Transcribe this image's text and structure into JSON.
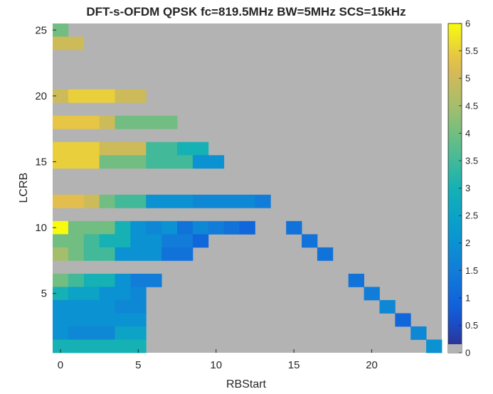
{
  "chart_data": {
    "type": "heatmap",
    "title": "DFT-s-OFDM QPSK fc=819.5MHz BW=5MHz SCS=15kHz",
    "xlabel": "RBStart",
    "ylabel": "LCRB",
    "x_range": [
      0,
      24
    ],
    "y_range": [
      1,
      25
    ],
    "xticks": [
      0,
      5,
      10,
      15,
      20
    ],
    "yticks": [
      5,
      10,
      15,
      20,
      25
    ],
    "colorbar": {
      "range": [
        0,
        6
      ],
      "ticks": [
        "0",
        "0.5",
        "1",
        "1.5",
        "2",
        "2.5",
        "3",
        "3.5",
        "4",
        "4.5",
        "5",
        "5.5",
        "6"
      ],
      "colormap": "parula"
    },
    "background_color": "#b3b3b3",
    "no_data_value": "gray",
    "rows": [
      {
        "lcrb": 25,
        "values": [
          4.0
        ]
      },
      {
        "lcrb": 24,
        "values": [
          5.0,
          5.0
        ]
      },
      {
        "lcrb": 20,
        "values": [
          5.0,
          5.5,
          5.5,
          5.5,
          5.0,
          5.0
        ]
      },
      {
        "lcrb": 18,
        "values": [
          5.4,
          5.4,
          5.4,
          5.0,
          4.0,
          4.0,
          4.0,
          4.0
        ]
      },
      {
        "lcrb": 16,
        "values": [
          5.5,
          5.5,
          5.5,
          5.0,
          5.0,
          5.0,
          3.5,
          3.5,
          3.0,
          3.0
        ]
      },
      {
        "lcrb": 15,
        "values": [
          5.5,
          5.5,
          5.5,
          4.0,
          4.0,
          4.0,
          3.5,
          3.5,
          3.5,
          2.0,
          2.0
        ]
      },
      {
        "lcrb": 12,
        "values": [
          5.3,
          5.3,
          5.0,
          4.0,
          3.5,
          3.5,
          2.0,
          2.0,
          2.0,
          1.75,
          1.75,
          1.75,
          1.75,
          1.5
        ]
      },
      {
        "lcrb": 10,
        "values": [
          6.0,
          4.0,
          4.0,
          4.0,
          3.0,
          2.0,
          1.75,
          2.0,
          1.25,
          1.75,
          1.5,
          1.25,
          1.0,
          null,
          null,
          1.25
        ]
      },
      {
        "lcrb": 9,
        "values": [
          4.0,
          4.0,
          3.5,
          3.0,
          3.0,
          2.0,
          2.0,
          1.5,
          1.5,
          1.0,
          null,
          null,
          null,
          null,
          null,
          null,
          1.25
        ]
      },
      {
        "lcrb": 8,
        "values": [
          4.5,
          4.0,
          3.5,
          3.5,
          2.0,
          2.0,
          2.0,
          1.25,
          1.25,
          null,
          null,
          null,
          null,
          null,
          null,
          null,
          null,
          1.25
        ]
      },
      {
        "lcrb": 6,
        "values": [
          4.0,
          3.5,
          3.0,
          3.0,
          2.0,
          1.5,
          1.5,
          null,
          null,
          null,
          null,
          null,
          null,
          null,
          null,
          null,
          null,
          null,
          null,
          1.25
        ]
      },
      {
        "lcrb": 5,
        "values": [
          3.0,
          2.5,
          2.5,
          2.0,
          2.0,
          1.75,
          null,
          null,
          null,
          null,
          null,
          null,
          null,
          null,
          null,
          null,
          null,
          null,
          null,
          null,
          1.5
        ]
      },
      {
        "lcrb": 4,
        "values": [
          2.0,
          2.0,
          2.0,
          2.0,
          1.75,
          1.75,
          null,
          null,
          null,
          null,
          null,
          null,
          null,
          null,
          null,
          null,
          null,
          null,
          null,
          null,
          null,
          1.75
        ]
      },
      {
        "lcrb": 3,
        "values": [
          2.0,
          2.0,
          2.0,
          2.0,
          2.0,
          2.0,
          null,
          null,
          null,
          null,
          null,
          null,
          null,
          null,
          null,
          null,
          null,
          null,
          null,
          null,
          null,
          null,
          1.0
        ]
      },
      {
        "lcrb": 2,
        "values": [
          2.0,
          1.75,
          1.75,
          1.75,
          2.5,
          2.5,
          null,
          null,
          null,
          null,
          null,
          null,
          null,
          null,
          null,
          null,
          null,
          null,
          null,
          null,
          null,
          null,
          null,
          1.75
        ]
      },
      {
        "lcrb": 1,
        "values": [
          3.0,
          3.0,
          3.0,
          3.0,
          3.0,
          3.0,
          null,
          null,
          null,
          null,
          null,
          null,
          null,
          null,
          null,
          null,
          null,
          null,
          null,
          null,
          null,
          null,
          null,
          null,
          2.0
        ]
      }
    ]
  }
}
